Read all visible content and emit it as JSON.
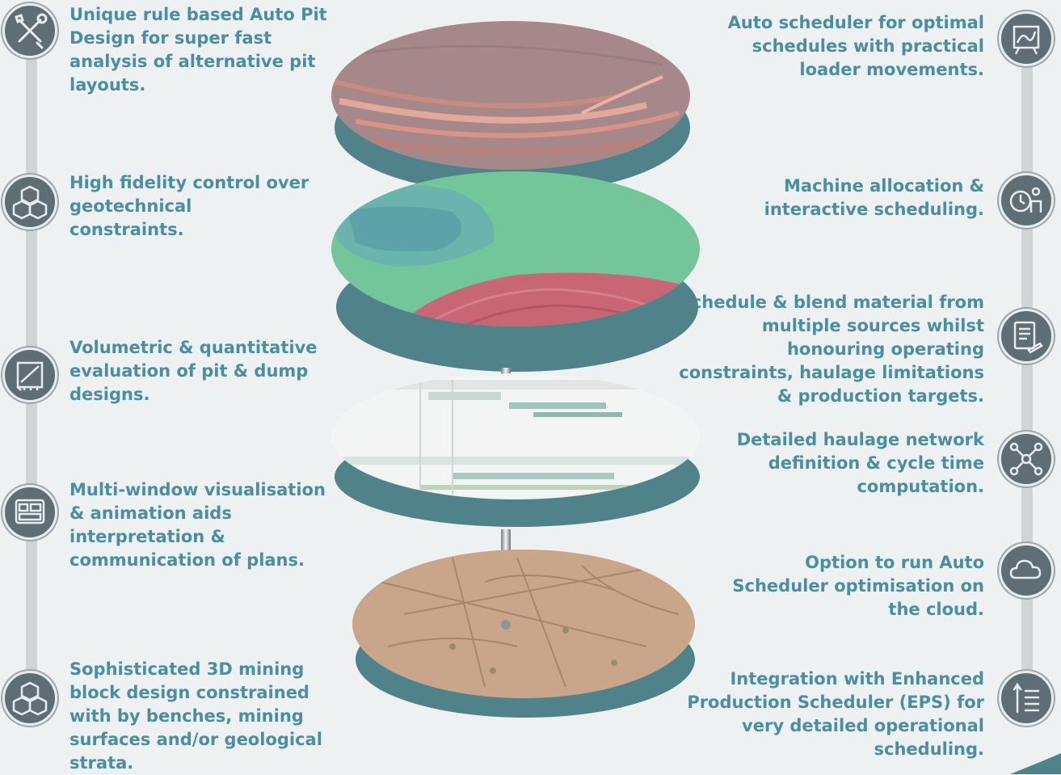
{
  "left_features": [
    {
      "text": "Unique rule based Auto Pit Design for super fast analysis of alternative pit layouts.",
      "icon": "tools-icon"
    },
    {
      "text": "High fidelity control over geotechnical constraints.",
      "icon": "cubes-icon"
    },
    {
      "text": "Volumetric & quantitative evaluation of pit & dump designs.",
      "icon": "design-board-icon"
    },
    {
      "text": "Multi-window visualisation & animation aids interpretation & communication of plans.",
      "icon": "windows-icon"
    },
    {
      "text": "Sophisticated 3D mining block design constrained with by benches, mining surfaces and/or geological strata.",
      "icon": "cubes-icon"
    }
  ],
  "right_features": [
    {
      "text": "Auto scheduler for optimal schedules with practical loader movements.",
      "icon": "map-board-icon"
    },
    {
      "text": "Machine allocation & interactive scheduling.",
      "icon": "clock-person-icon"
    },
    {
      "text": "Schedule & blend material from multiple sources whilst honouring operating constraints, haulage limitations & production targets.",
      "icon": "document-pen-icon"
    },
    {
      "text": "Detailed haulage network definition & cycle time computation.",
      "icon": "network-icon"
    },
    {
      "text": "Option to run Auto Scheduler optimisation on the cloud.",
      "icon": "cloud-icon"
    },
    {
      "text": "Integration with Enhanced Production Scheduler (EPS) for very detailed operational scheduling.",
      "icon": "list-indent-icon"
    }
  ],
  "colors": {
    "text": "#4a8fa0",
    "icon_bg": "#5e6e74",
    "timeline": "#cfd4d7",
    "disc_rim": "#4f8289",
    "background": "#eef1f2"
  }
}
